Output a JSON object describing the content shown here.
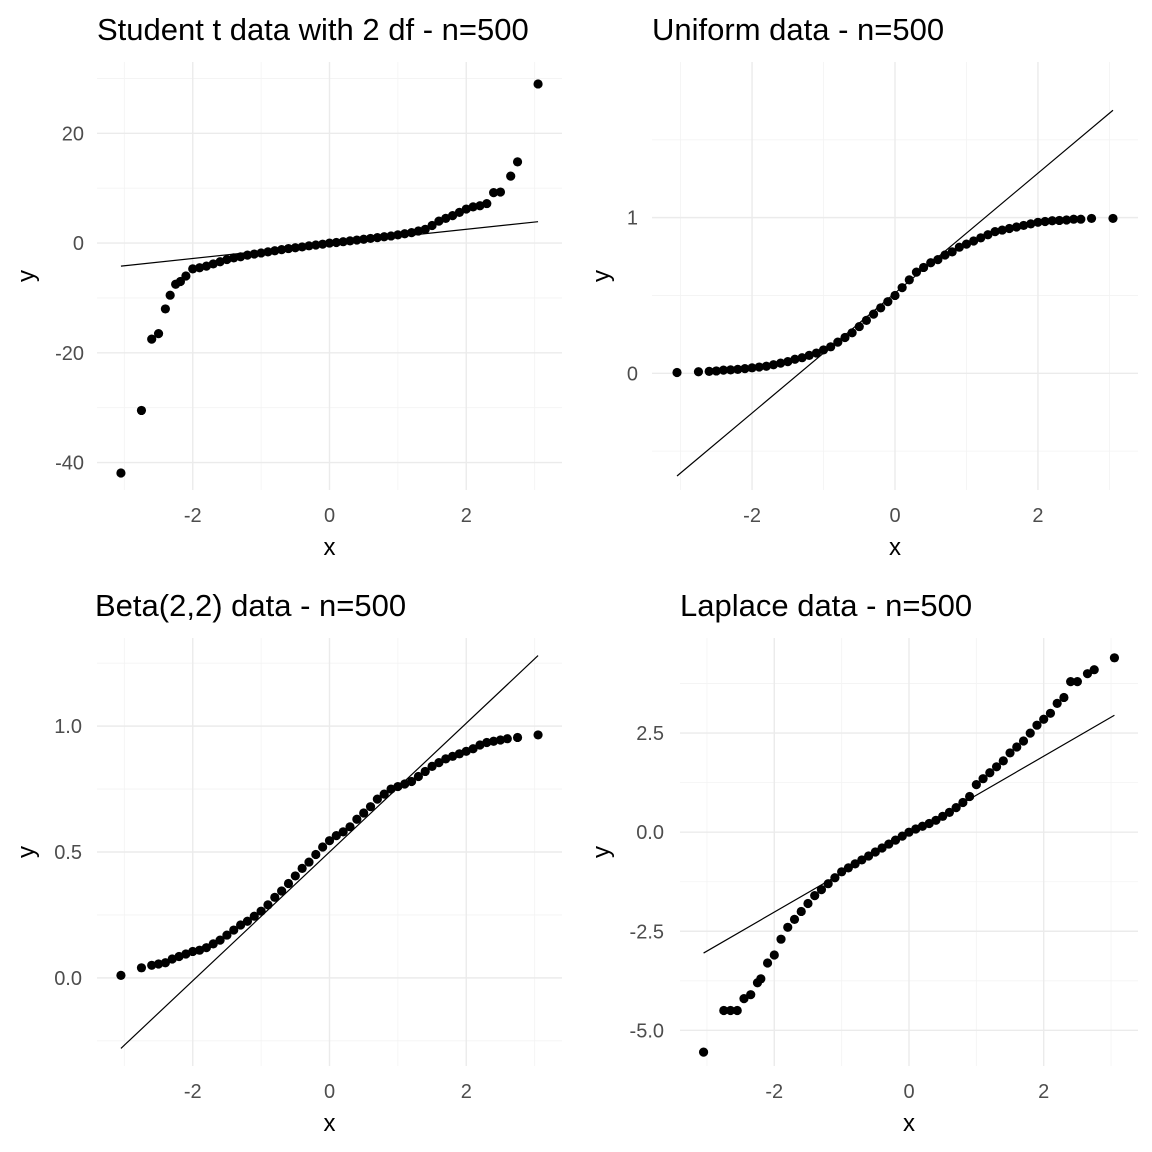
{
  "chart_data": [
    {
      "type": "scatter",
      "title": "Student t data with 2 df - n=500",
      "xlabel": "x",
      "ylabel": "y",
      "xlim": [
        -3.4,
        3.4
      ],
      "ylim": [
        -45,
        33
      ],
      "xticks": [
        -2,
        0,
        2
      ],
      "xtick_labels": [
        "-2",
        "0",
        "2"
      ],
      "yticks": [
        -40,
        -20,
        0,
        20
      ],
      "ytick_labels": [
        "-40",
        "-20",
        "0",
        "20"
      ],
      "grid": true,
      "legend": "none",
      "reference_line": [
        [
          -3.05,
          -4.2
        ],
        [
          3.05,
          3.9
        ]
      ],
      "series": [
        {
          "points": [
            [
              -3.05,
              -41.9
            ],
            [
              -2.75,
              -30.5
            ],
            [
              -2.6,
              -17.5
            ],
            [
              -2.5,
              -16.5
            ],
            [
              -2.4,
              -12
            ],
            [
              -2.33,
              -9.5
            ],
            [
              -2.25,
              -7.5
            ],
            [
              -2.18,
              -7
            ],
            [
              -2.1,
              -6
            ],
            [
              -2.0,
              -4.7
            ],
            [
              -1.9,
              -4.5
            ],
            [
              -1.8,
              -4.2
            ],
            [
              -1.7,
              -3.8
            ],
            [
              -1.6,
              -3.4
            ],
            [
              -1.5,
              -3.0
            ],
            [
              -1.4,
              -2.7
            ],
            [
              -1.3,
              -2.5
            ],
            [
              -1.2,
              -2.2
            ],
            [
              -1.1,
              -2.0
            ],
            [
              -1.0,
              -1.8
            ],
            [
              -0.9,
              -1.6
            ],
            [
              -0.8,
              -1.4
            ],
            [
              -0.7,
              -1.2
            ],
            [
              -0.6,
              -1.0
            ],
            [
              -0.5,
              -0.85
            ],
            [
              -0.4,
              -0.7
            ],
            [
              -0.3,
              -0.5
            ],
            [
              -0.2,
              -0.35
            ],
            [
              -0.1,
              -0.2
            ],
            [
              0.0,
              0.0
            ],
            [
              0.1,
              0.1
            ],
            [
              0.2,
              0.25
            ],
            [
              0.3,
              0.4
            ],
            [
              0.4,
              0.55
            ],
            [
              0.5,
              0.7
            ],
            [
              0.6,
              0.85
            ],
            [
              0.7,
              1.0
            ],
            [
              0.8,
              1.15
            ],
            [
              0.9,
              1.3
            ],
            [
              1.0,
              1.5
            ],
            [
              1.1,
              1.7
            ],
            [
              1.2,
              1.9
            ],
            [
              1.3,
              2.2
            ],
            [
              1.4,
              2.5
            ],
            [
              1.5,
              3.2
            ],
            [
              1.6,
              4.0
            ],
            [
              1.7,
              4.5
            ],
            [
              1.8,
              5.0
            ],
            [
              1.9,
              5.6
            ],
            [
              2.0,
              6.2
            ],
            [
              2.1,
              6.6
            ],
            [
              2.2,
              6.8
            ],
            [
              2.3,
              7.2
            ],
            [
              2.4,
              9.2
            ],
            [
              2.5,
              9.3
            ],
            [
              2.65,
              12.2
            ],
            [
              2.75,
              14.8
            ],
            [
              3.05,
              29.0
            ]
          ]
        }
      ]
    },
    {
      "type": "scatter",
      "title": "Uniform data - n=500",
      "xlabel": "x",
      "ylabel": "y",
      "xlim": [
        -3.4,
        3.4
      ],
      "ylim": [
        -0.75,
        2.0
      ],
      "xticks": [
        -2,
        0,
        2
      ],
      "xtick_labels": [
        "-2",
        "0",
        "2"
      ],
      "yticks": [
        0,
        1
      ],
      "ytick_labels": [
        "0",
        "1"
      ],
      "grid": true,
      "legend": "none",
      "reference_line": [
        [
          -3.05,
          -0.66
        ],
        [
          3.05,
          1.69
        ]
      ],
      "series": [
        {
          "points": [
            [
              -3.05,
              0.005
            ],
            [
              -2.75,
              0.01
            ],
            [
              -2.6,
              0.012
            ],
            [
              -2.5,
              0.015
            ],
            [
              -2.4,
              0.02
            ],
            [
              -2.3,
              0.022
            ],
            [
              -2.2,
              0.025
            ],
            [
              -2.1,
              0.03
            ],
            [
              -2.0,
              0.035
            ],
            [
              -1.9,
              0.04
            ],
            [
              -1.8,
              0.045
            ],
            [
              -1.7,
              0.055
            ],
            [
              -1.6,
              0.065
            ],
            [
              -1.5,
              0.075
            ],
            [
              -1.4,
              0.09
            ],
            [
              -1.3,
              0.1
            ],
            [
              -1.2,
              0.115
            ],
            [
              -1.1,
              0.13
            ],
            [
              -1.0,
              0.15
            ],
            [
              -0.9,
              0.17
            ],
            [
              -0.8,
              0.2
            ],
            [
              -0.7,
              0.23
            ],
            [
              -0.6,
              0.26
            ],
            [
              -0.5,
              0.3
            ],
            [
              -0.4,
              0.34
            ],
            [
              -0.3,
              0.38
            ],
            [
              -0.2,
              0.42
            ],
            [
              -0.1,
              0.46
            ],
            [
              0.0,
              0.5
            ],
            [
              0.1,
              0.55
            ],
            [
              0.2,
              0.6
            ],
            [
              0.3,
              0.65
            ],
            [
              0.4,
              0.68
            ],
            [
              0.5,
              0.71
            ],
            [
              0.6,
              0.73
            ],
            [
              0.7,
              0.76
            ],
            [
              0.8,
              0.78
            ],
            [
              0.9,
              0.81
            ],
            [
              1.0,
              0.83
            ],
            [
              1.1,
              0.85
            ],
            [
              1.2,
              0.87
            ],
            [
              1.3,
              0.89
            ],
            [
              1.4,
              0.91
            ],
            [
              1.5,
              0.92
            ],
            [
              1.6,
              0.93
            ],
            [
              1.7,
              0.94
            ],
            [
              1.8,
              0.95
            ],
            [
              1.9,
              0.96
            ],
            [
              2.0,
              0.97
            ],
            [
              2.1,
              0.975
            ],
            [
              2.2,
              0.98
            ],
            [
              2.3,
              0.982
            ],
            [
              2.4,
              0.985
            ],
            [
              2.5,
              0.99
            ],
            [
              2.6,
              0.99
            ],
            [
              2.75,
              0.995
            ],
            [
              3.05,
              0.995
            ]
          ]
        }
      ]
    },
    {
      "type": "scatter",
      "title": "Beta(2,2) data - n=500",
      "xlabel": "x",
      "ylabel": "y",
      "xlim": [
        -3.4,
        3.4
      ],
      "ylim": [
        -0.35,
        1.35
      ],
      "xticks": [
        -2,
        0,
        2
      ],
      "xtick_labels": [
        "-2",
        "0",
        "2"
      ],
      "yticks": [
        0.0,
        0.5,
        1.0
      ],
      "ytick_labels": [
        "0.0",
        "0.5",
        "1.0"
      ],
      "grid": true,
      "legend": "none",
      "reference_line": [
        [
          -3.05,
          -0.28
        ],
        [
          3.05,
          1.28
        ]
      ],
      "series": [
        {
          "points": [
            [
              -3.05,
              0.01
            ],
            [
              -2.75,
              0.04
            ],
            [
              -2.6,
              0.05
            ],
            [
              -2.5,
              0.055
            ],
            [
              -2.4,
              0.06
            ],
            [
              -2.3,
              0.075
            ],
            [
              -2.2,
              0.085
            ],
            [
              -2.1,
              0.095
            ],
            [
              -2.0,
              0.105
            ],
            [
              -1.9,
              0.11
            ],
            [
              -1.8,
              0.12
            ],
            [
              -1.7,
              0.135
            ],
            [
              -1.6,
              0.15
            ],
            [
              -1.5,
              0.17
            ],
            [
              -1.4,
              0.19
            ],
            [
              -1.3,
              0.21
            ],
            [
              -1.2,
              0.225
            ],
            [
              -1.1,
              0.245
            ],
            [
              -1.0,
              0.265
            ],
            [
              -0.9,
              0.29
            ],
            [
              -0.8,
              0.32
            ],
            [
              -0.7,
              0.345
            ],
            [
              -0.6,
              0.375
            ],
            [
              -0.5,
              0.405
            ],
            [
              -0.4,
              0.435
            ],
            [
              -0.3,
              0.46
            ],
            [
              -0.2,
              0.49
            ],
            [
              -0.1,
              0.52
            ],
            [
              0.0,
              0.545
            ],
            [
              0.1,
              0.565
            ],
            [
              0.2,
              0.58
            ],
            [
              0.3,
              0.6
            ],
            [
              0.4,
              0.63
            ],
            [
              0.5,
              0.655
            ],
            [
              0.6,
              0.68
            ],
            [
              0.7,
              0.71
            ],
            [
              0.8,
              0.73
            ],
            [
              0.9,
              0.75
            ],
            [
              1.0,
              0.76
            ],
            [
              1.1,
              0.77
            ],
            [
              1.2,
              0.78
            ],
            [
              1.3,
              0.8
            ],
            [
              1.4,
              0.82
            ],
            [
              1.5,
              0.84
            ],
            [
              1.6,
              0.855
            ],
            [
              1.7,
              0.87
            ],
            [
              1.8,
              0.88
            ],
            [
              1.9,
              0.89
            ],
            [
              2.0,
              0.9
            ],
            [
              2.1,
              0.91
            ],
            [
              2.2,
              0.925
            ],
            [
              2.3,
              0.935
            ],
            [
              2.4,
              0.94
            ],
            [
              2.5,
              0.945
            ],
            [
              2.6,
              0.95
            ],
            [
              2.75,
              0.955
            ],
            [
              3.05,
              0.965
            ]
          ]
        }
      ]
    },
    {
      "type": "scatter",
      "title": "Laplace data - n=500",
      "xlabel": "x",
      "ylabel": "y",
      "xlim": [
        -3.4,
        3.4
      ],
      "ylim": [
        -5.9,
        4.9
      ],
      "xticks": [
        -2,
        0,
        2
      ],
      "xtick_labels": [
        "-2",
        "0",
        "2"
      ],
      "yticks": [
        -5.0,
        -2.5,
        0.0,
        2.5
      ],
      "ytick_labels": [
        "-5.0",
        "-2.5",
        "0.0",
        "2.5"
      ],
      "grid": true,
      "legend": "none",
      "reference_line": [
        [
          -3.05,
          -3.05
        ],
        [
          3.05,
          2.95
        ]
      ],
      "series": [
        {
          "points": [
            [
              -3.05,
              -5.55
            ],
            [
              -2.75,
              -4.5
            ],
            [
              -2.65,
              -4.5
            ],
            [
              -2.55,
              -4.5
            ],
            [
              -2.45,
              -4.2
            ],
            [
              -2.35,
              -4.1
            ],
            [
              -2.25,
              -3.8
            ],
            [
              -2.2,
              -3.7
            ],
            [
              -2.1,
              -3.3
            ],
            [
              -2.0,
              -3.1
            ],
            [
              -1.9,
              -2.7
            ],
            [
              -1.8,
              -2.4
            ],
            [
              -1.7,
              -2.2
            ],
            [
              -1.6,
              -2.0
            ],
            [
              -1.5,
              -1.8
            ],
            [
              -1.4,
              -1.6
            ],
            [
              -1.3,
              -1.45
            ],
            [
              -1.2,
              -1.3
            ],
            [
              -1.1,
              -1.15
            ],
            [
              -1.0,
              -1.0
            ],
            [
              -0.9,
              -0.9
            ],
            [
              -0.8,
              -0.8
            ],
            [
              -0.7,
              -0.7
            ],
            [
              -0.6,
              -0.6
            ],
            [
              -0.5,
              -0.5
            ],
            [
              -0.4,
              -0.4
            ],
            [
              -0.3,
              -0.3
            ],
            [
              -0.2,
              -0.2
            ],
            [
              -0.1,
              -0.1
            ],
            [
              0.0,
              0.0
            ],
            [
              0.1,
              0.08
            ],
            [
              0.2,
              0.15
            ],
            [
              0.3,
              0.22
            ],
            [
              0.4,
              0.3
            ],
            [
              0.5,
              0.4
            ],
            [
              0.6,
              0.5
            ],
            [
              0.7,
              0.62
            ],
            [
              0.8,
              0.75
            ],
            [
              0.9,
              0.9
            ],
            [
              1.0,
              1.2
            ],
            [
              1.1,
              1.35
            ],
            [
              1.2,
              1.5
            ],
            [
              1.3,
              1.65
            ],
            [
              1.4,
              1.8
            ],
            [
              1.5,
              2.0
            ],
            [
              1.6,
              2.15
            ],
            [
              1.7,
              2.3
            ],
            [
              1.8,
              2.5
            ],
            [
              1.9,
              2.7
            ],
            [
              2.0,
              2.85
            ],
            [
              2.1,
              3.0
            ],
            [
              2.2,
              3.25
            ],
            [
              2.3,
              3.4
            ],
            [
              2.4,
              3.8
            ],
            [
              2.5,
              3.8
            ],
            [
              2.65,
              4.0
            ],
            [
              2.75,
              4.1
            ],
            [
              3.05,
              4.4
            ]
          ]
        }
      ]
    }
  ]
}
